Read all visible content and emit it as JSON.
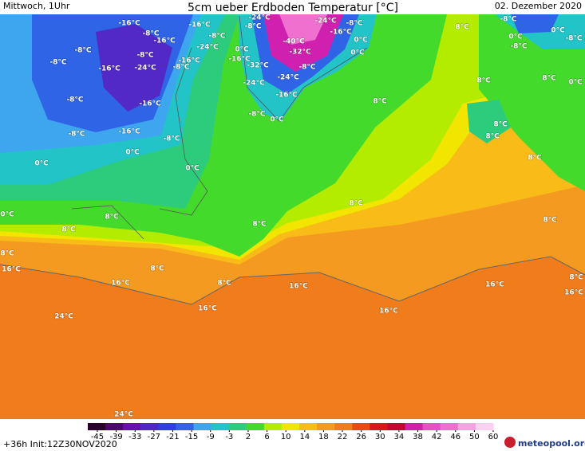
{
  "header": {
    "left": "Mittwoch, 1Uhr",
    "title": "5cm ueber Erdboden Temperatur [°C]",
    "right": "02. Dezember 2020"
  },
  "map_labels": [
    "-16°C",
    "-8°C",
    "-16°C",
    "-16°C",
    "-8°C",
    "-24°C",
    "-24°C",
    "-8°C",
    "-24°C",
    "-16°C",
    "-8°C",
    "-8°C",
    "-8°C",
    "-8°C",
    "-16°C",
    "-8°C",
    "-24°C",
    "-8°C",
    "-16°C",
    "0°C",
    "-16°C",
    "-32°C",
    "-24°C",
    "-40°C",
    "-32°C",
    "-8°C",
    "0°C",
    "0°C",
    "-24°C",
    "-16°C",
    "8°C",
    "0°C",
    "0°C",
    "-8°C",
    "-8°C",
    "8°C",
    "8°C",
    "0°C",
    "-8°C",
    "-16°C",
    "8°C",
    "-8°C",
    "0°C",
    "-16°C",
    "-8°C",
    "-8°C",
    "0°C",
    "8°C",
    "8°C",
    "8°C",
    "0°C",
    "0°C",
    "8°C",
    "0°C",
    "8°C",
    "8°C",
    "8°C",
    "8°C",
    "8°C",
    "16°C",
    "8°C",
    "8°C",
    "16°C",
    "16°C",
    "16°C",
    "8°C",
    "16°C",
    "16°C",
    "16°C",
    "24°C",
    "24°C"
  ],
  "colorbar": {
    "ticks": [
      -45,
      -39,
      -33,
      -27,
      -21,
      -15,
      -9,
      -3,
      2,
      6,
      10,
      14,
      18,
      22,
      26,
      30,
      34,
      38,
      42,
      46,
      50,
      60
    ]
  },
  "footer": {
    "run": "+36h Init:12Z30NOV2020",
    "logo": "meteopool.org"
  }
}
